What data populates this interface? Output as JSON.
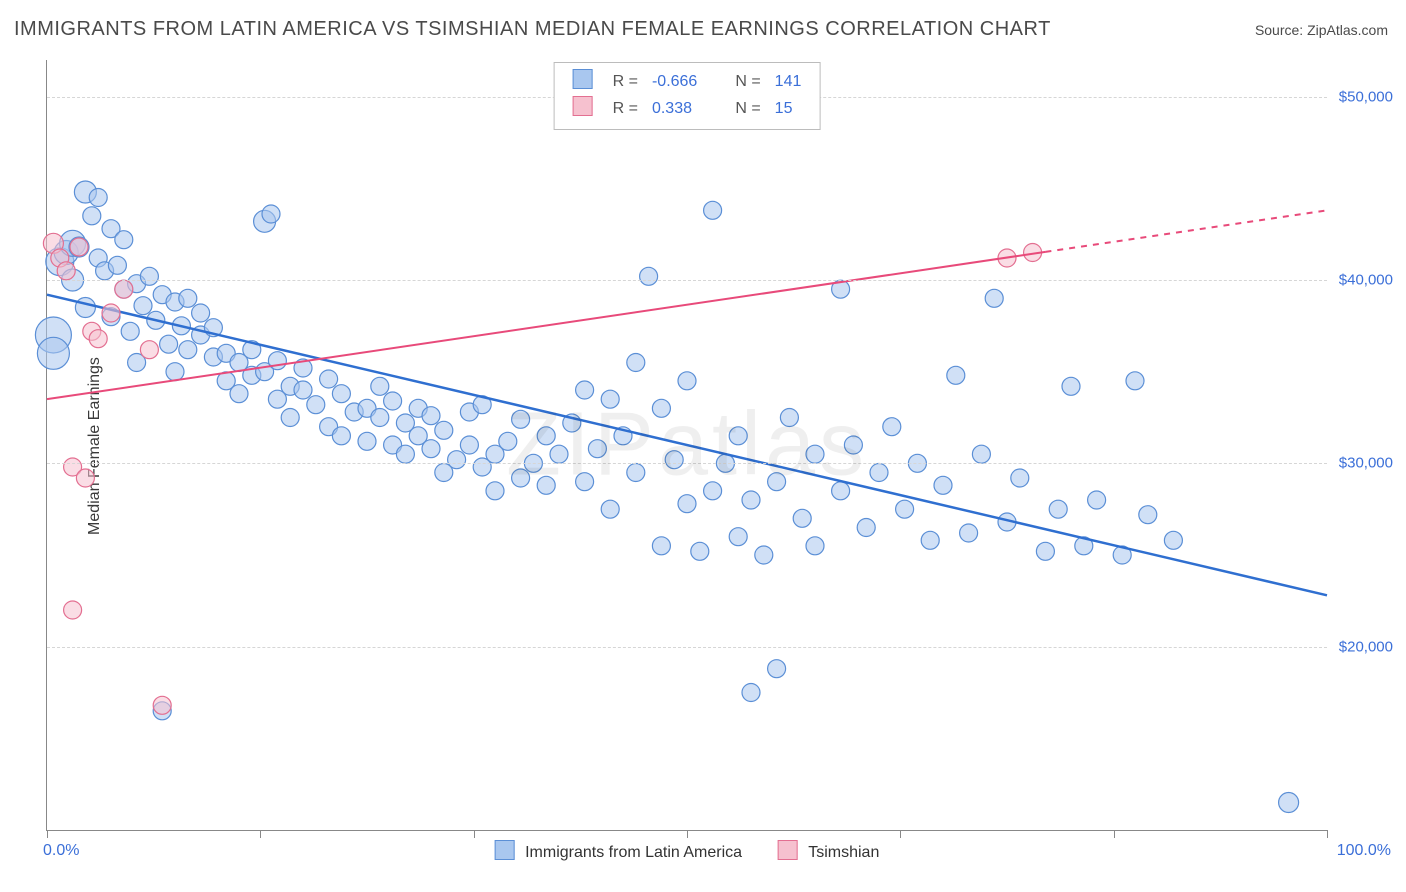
{
  "title": "IMMIGRANTS FROM LATIN AMERICA VS TSIMSHIAN MEDIAN FEMALE EARNINGS CORRELATION CHART",
  "source": "Source: ZipAtlas.com",
  "ylabel": "Median Female Earnings",
  "watermark": "ZIPatlas",
  "chart": {
    "type": "scatter-correlation",
    "xlim": [
      0,
      100
    ],
    "ylim": [
      10000,
      52000
    ],
    "ygrid_values": [
      20000,
      30000,
      40000,
      50000
    ],
    "ygrid_labels": [
      "$20,000",
      "$30,000",
      "$40,000",
      "$50,000"
    ],
    "xtick_positions": [
      0,
      16.67,
      33.33,
      50,
      66.67,
      83.33,
      100
    ],
    "x_left_label": "0.0%",
    "x_right_label": "100.0%",
    "background_color": "#ffffff",
    "grid_color": "#d6d6d6",
    "axis_color": "#888888",
    "label_color": "#3b6fd8",
    "title_color": "#4a4a4a",
    "title_fontsize": 20,
    "axis_label_fontsize": 16,
    "tick_label_fontsize": 15,
    "default_marker_radius": 9
  },
  "series": {
    "blue": {
      "name": "Immigrants from Latin America",
      "R": "-0.666",
      "N": "141",
      "fill": "#a9c7ef",
      "stroke": "#5b8fd6",
      "fill_opacity": 0.55,
      "trend": {
        "x1": 0,
        "y1": 39200,
        "x2": 100,
        "y2": 22800,
        "color": "#2f6fd0",
        "width": 2.5,
        "dash_after_x": null
      },
      "points": [
        {
          "x": 0.5,
          "y": 37000,
          "r": 18
        },
        {
          "x": 0.5,
          "y": 36000,
          "r": 16
        },
        {
          "x": 1,
          "y": 41000,
          "r": 14
        },
        {
          "x": 1.5,
          "y": 41500,
          "r": 12
        },
        {
          "x": 2,
          "y": 42000,
          "r": 13
        },
        {
          "x": 2,
          "y": 40000,
          "r": 11
        },
        {
          "x": 2.5,
          "y": 41800,
          "r": 10
        },
        {
          "x": 3,
          "y": 44800,
          "r": 11
        },
        {
          "x": 3,
          "y": 38500,
          "r": 10
        },
        {
          "x": 3.5,
          "y": 43500,
          "r": 9
        },
        {
          "x": 4,
          "y": 44500,
          "r": 9
        },
        {
          "x": 4,
          "y": 41200,
          "r": 9
        },
        {
          "x": 4.5,
          "y": 40500,
          "r": 9
        },
        {
          "x": 5,
          "y": 42800,
          "r": 9
        },
        {
          "x": 5,
          "y": 38000,
          "r": 9
        },
        {
          "x": 5.5,
          "y": 40800,
          "r": 9
        },
        {
          "x": 6,
          "y": 39500,
          "r": 9
        },
        {
          "x": 6,
          "y": 42200,
          "r": 9
        },
        {
          "x": 6.5,
          "y": 37200,
          "r": 9
        },
        {
          "x": 7,
          "y": 39800,
          "r": 9
        },
        {
          "x": 7,
          "y": 35500,
          "r": 9
        },
        {
          "x": 7.5,
          "y": 38600,
          "r": 9
        },
        {
          "x": 8,
          "y": 40200,
          "r": 9
        },
        {
          "x": 8.5,
          "y": 37800,
          "r": 9
        },
        {
          "x": 9,
          "y": 39200,
          "r": 9
        },
        {
          "x": 9,
          "y": 16500,
          "r": 9
        },
        {
          "x": 9.5,
          "y": 36500,
          "r": 9
        },
        {
          "x": 10,
          "y": 38800,
          "r": 9
        },
        {
          "x": 10,
          "y": 35000,
          "r": 9
        },
        {
          "x": 10.5,
          "y": 37500,
          "r": 9
        },
        {
          "x": 11,
          "y": 36200,
          "r": 9
        },
        {
          "x": 11,
          "y": 39000,
          "r": 9
        },
        {
          "x": 12,
          "y": 37000,
          "r": 9
        },
        {
          "x": 12,
          "y": 38200,
          "r": 9
        },
        {
          "x": 13,
          "y": 35800,
          "r": 9
        },
        {
          "x": 13,
          "y": 37400,
          "r": 9
        },
        {
          "x": 14,
          "y": 36000,
          "r": 9
        },
        {
          "x": 14,
          "y": 34500,
          "r": 9
        },
        {
          "x": 15,
          "y": 35500,
          "r": 9
        },
        {
          "x": 15,
          "y": 33800,
          "r": 9
        },
        {
          "x": 16,
          "y": 36200,
          "r": 9
        },
        {
          "x": 16,
          "y": 34800,
          "r": 9
        },
        {
          "x": 17,
          "y": 35000,
          "r": 9
        },
        {
          "x": 17,
          "y": 43200,
          "r": 11
        },
        {
          "x": 17.5,
          "y": 43600,
          "r": 9
        },
        {
          "x": 18,
          "y": 33500,
          "r": 9
        },
        {
          "x": 18,
          "y": 35600,
          "r": 9
        },
        {
          "x": 19,
          "y": 34200,
          "r": 9
        },
        {
          "x": 19,
          "y": 32500,
          "r": 9
        },
        {
          "x": 20,
          "y": 34000,
          "r": 9
        },
        {
          "x": 20,
          "y": 35200,
          "r": 9
        },
        {
          "x": 21,
          "y": 33200,
          "r": 9
        },
        {
          "x": 22,
          "y": 34600,
          "r": 9
        },
        {
          "x": 22,
          "y": 32000,
          "r": 9
        },
        {
          "x": 23,
          "y": 33800,
          "r": 9
        },
        {
          "x": 23,
          "y": 31500,
          "r": 9
        },
        {
          "x": 24,
          "y": 32800,
          "r": 9
        },
        {
          "x": 25,
          "y": 33000,
          "r": 9
        },
        {
          "x": 25,
          "y": 31200,
          "r": 9
        },
        {
          "x": 26,
          "y": 34200,
          "r": 9
        },
        {
          "x": 26,
          "y": 32500,
          "r": 9
        },
        {
          "x": 27,
          "y": 31000,
          "r": 9
        },
        {
          "x": 27,
          "y": 33400,
          "r": 9
        },
        {
          "x": 28,
          "y": 30500,
          "r": 9
        },
        {
          "x": 28,
          "y": 32200,
          "r": 9
        },
        {
          "x": 29,
          "y": 31500,
          "r": 9
        },
        {
          "x": 29,
          "y": 33000,
          "r": 9
        },
        {
          "x": 30,
          "y": 30800,
          "r": 9
        },
        {
          "x": 30,
          "y": 32600,
          "r": 9
        },
        {
          "x": 31,
          "y": 29500,
          "r": 9
        },
        {
          "x": 31,
          "y": 31800,
          "r": 9
        },
        {
          "x": 32,
          "y": 30200,
          "r": 9
        },
        {
          "x": 33,
          "y": 31000,
          "r": 9
        },
        {
          "x": 33,
          "y": 32800,
          "r": 9
        },
        {
          "x": 34,
          "y": 29800,
          "r": 9
        },
        {
          "x": 34,
          "y": 33200,
          "r": 9
        },
        {
          "x": 35,
          "y": 30500,
          "r": 9
        },
        {
          "x": 35,
          "y": 28500,
          "r": 9
        },
        {
          "x": 36,
          "y": 31200,
          "r": 9
        },
        {
          "x": 37,
          "y": 29200,
          "r": 9
        },
        {
          "x": 37,
          "y": 32400,
          "r": 9
        },
        {
          "x": 38,
          "y": 30000,
          "r": 9
        },
        {
          "x": 39,
          "y": 31500,
          "r": 9
        },
        {
          "x": 39,
          "y": 28800,
          "r": 9
        },
        {
          "x": 40,
          "y": 30500,
          "r": 9
        },
        {
          "x": 41,
          "y": 32200,
          "r": 9
        },
        {
          "x": 42,
          "y": 29000,
          "r": 9
        },
        {
          "x": 42,
          "y": 34000,
          "r": 9
        },
        {
          "x": 43,
          "y": 30800,
          "r": 9
        },
        {
          "x": 44,
          "y": 33500,
          "r": 9
        },
        {
          "x": 44,
          "y": 27500,
          "r": 9
        },
        {
          "x": 45,
          "y": 31500,
          "r": 9
        },
        {
          "x": 46,
          "y": 35500,
          "r": 9
        },
        {
          "x": 46,
          "y": 29500,
          "r": 9
        },
        {
          "x": 47,
          "y": 40200,
          "r": 9
        },
        {
          "x": 48,
          "y": 33000,
          "r": 9
        },
        {
          "x": 48,
          "y": 25500,
          "r": 9
        },
        {
          "x": 49,
          "y": 30200,
          "r": 9
        },
        {
          "x": 50,
          "y": 27800,
          "r": 9
        },
        {
          "x": 50,
          "y": 34500,
          "r": 9
        },
        {
          "x": 51,
          "y": 25200,
          "r": 9
        },
        {
          "x": 52,
          "y": 28500,
          "r": 9
        },
        {
          "x": 52,
          "y": 43800,
          "r": 9
        },
        {
          "x": 53,
          "y": 30000,
          "r": 9
        },
        {
          "x": 54,
          "y": 26000,
          "r": 9
        },
        {
          "x": 54,
          "y": 31500,
          "r": 9
        },
        {
          "x": 55,
          "y": 28000,
          "r": 9
        },
        {
          "x": 55,
          "y": 17500,
          "r": 9
        },
        {
          "x": 56,
          "y": 25000,
          "r": 9
        },
        {
          "x": 57,
          "y": 29000,
          "r": 9
        },
        {
          "x": 57,
          "y": 18800,
          "r": 9
        },
        {
          "x": 58,
          "y": 32500,
          "r": 9
        },
        {
          "x": 59,
          "y": 27000,
          "r": 9
        },
        {
          "x": 60,
          "y": 30500,
          "r": 9
        },
        {
          "x": 60,
          "y": 25500,
          "r": 9
        },
        {
          "x": 62,
          "y": 28500,
          "r": 9
        },
        {
          "x": 62,
          "y": 39500,
          "r": 9
        },
        {
          "x": 63,
          "y": 31000,
          "r": 9
        },
        {
          "x": 64,
          "y": 26500,
          "r": 9
        },
        {
          "x": 65,
          "y": 29500,
          "r": 9
        },
        {
          "x": 66,
          "y": 32000,
          "r": 9
        },
        {
          "x": 67,
          "y": 27500,
          "r": 9
        },
        {
          "x": 68,
          "y": 30000,
          "r": 9
        },
        {
          "x": 69,
          "y": 25800,
          "r": 9
        },
        {
          "x": 70,
          "y": 28800,
          "r": 9
        },
        {
          "x": 71,
          "y": 34800,
          "r": 9
        },
        {
          "x": 72,
          "y": 26200,
          "r": 9
        },
        {
          "x": 73,
          "y": 30500,
          "r": 9
        },
        {
          "x": 74,
          "y": 39000,
          "r": 9
        },
        {
          "x": 75,
          "y": 26800,
          "r": 9
        },
        {
          "x": 76,
          "y": 29200,
          "r": 9
        },
        {
          "x": 78,
          "y": 25200,
          "r": 9
        },
        {
          "x": 79,
          "y": 27500,
          "r": 9
        },
        {
          "x": 80,
          "y": 34200,
          "r": 9
        },
        {
          "x": 81,
          "y": 25500,
          "r": 9
        },
        {
          "x": 82,
          "y": 28000,
          "r": 9
        },
        {
          "x": 84,
          "y": 25000,
          "r": 9
        },
        {
          "x": 85,
          "y": 34500,
          "r": 9
        },
        {
          "x": 86,
          "y": 27200,
          "r": 9
        },
        {
          "x": 88,
          "y": 25800,
          "r": 9
        },
        {
          "x": 97,
          "y": 11500,
          "r": 10
        }
      ]
    },
    "pink": {
      "name": "Tsimshian",
      "R": "0.338",
      "N": "15",
      "fill": "#f6c1cf",
      "stroke": "#e36f91",
      "fill_opacity": 0.55,
      "trend": {
        "x1": 0,
        "y1": 33500,
        "x2": 100,
        "y2": 43800,
        "color": "#e84a7a",
        "width": 2,
        "dash_after_x": 78
      },
      "points": [
        {
          "x": 0.5,
          "y": 42000,
          "r": 10
        },
        {
          "x": 1,
          "y": 41200,
          "r": 9
        },
        {
          "x": 1.5,
          "y": 40500,
          "r": 9
        },
        {
          "x": 2,
          "y": 29800,
          "r": 9
        },
        {
          "x": 2,
          "y": 22000,
          "r": 9
        },
        {
          "x": 2.5,
          "y": 41800,
          "r": 9
        },
        {
          "x": 3,
          "y": 29200,
          "r": 9
        },
        {
          "x": 3.5,
          "y": 37200,
          "r": 9
        },
        {
          "x": 4,
          "y": 36800,
          "r": 9
        },
        {
          "x": 5,
          "y": 38200,
          "r": 9
        },
        {
          "x": 6,
          "y": 39500,
          "r": 9
        },
        {
          "x": 8,
          "y": 36200,
          "r": 9
        },
        {
          "x": 9,
          "y": 16800,
          "r": 9
        },
        {
          "x": 75,
          "y": 41200,
          "r": 9
        },
        {
          "x": 77,
          "y": 41500,
          "r": 9
        }
      ]
    }
  },
  "top_legend": {
    "r_label": "R =",
    "n_label": "N ="
  },
  "bottom_legend": {
    "blue_label": "Immigrants from Latin America",
    "pink_label": "Tsimshian"
  }
}
